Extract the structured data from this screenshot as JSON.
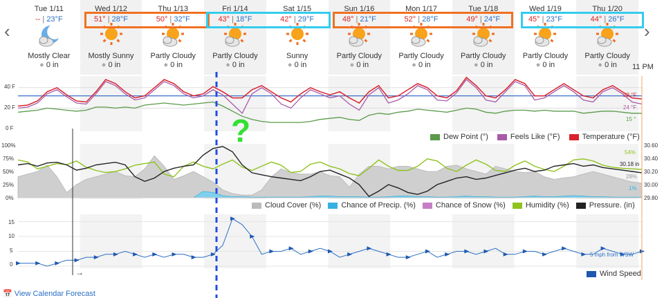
{
  "days": [
    {
      "date": "Tue 1/11",
      "hi": "--",
      "lo": "23°F",
      "condition": "Mostly Clear",
      "precip": "0 in",
      "icon": "moon-cloud"
    },
    {
      "date": "Wed 1/12",
      "hi": "51°",
      "lo": "28°F",
      "condition": "Mostly Sunny",
      "precip": "0 in",
      "icon": "sun"
    },
    {
      "date": "Thu 1/13",
      "hi": "50°",
      "lo": "32°F",
      "condition": "Partly Cloudy",
      "precip": "0 in",
      "icon": "sun-cloud"
    },
    {
      "date": "Fri 1/14",
      "hi": "43°",
      "lo": "18°F",
      "condition": "Partly Cloudy",
      "precip": "0 in",
      "icon": "sun-cloud"
    },
    {
      "date": "Sat 1/15",
      "hi": "42°",
      "lo": "29°F",
      "condition": "Sunny",
      "precip": "0 in",
      "icon": "sun"
    },
    {
      "date": "Sun 1/16",
      "hi": "48°",
      "lo": "21°F",
      "condition": "Partly Cloudy",
      "precip": "0 in",
      "icon": "sun-cloud"
    },
    {
      "date": "Mon 1/17",
      "hi": "52°",
      "lo": "28°F",
      "condition": "Partly Cloudy",
      "precip": "0 in",
      "icon": "sun-cloud"
    },
    {
      "date": "Tue 1/18",
      "hi": "49°",
      "lo": "24°F",
      "condition": "Partly Cloudy",
      "precip": "0 in",
      "icon": "sun-cloud"
    },
    {
      "date": "Wed 1/19",
      "hi": "45°",
      "lo": "23°F",
      "condition": "Partly Cloudy",
      "precip": "0 in",
      "icon": "sun-cloud"
    },
    {
      "date": "Thu 1/20",
      "hi": "44°",
      "lo": "26°F",
      "condition": "Partly Cloudy",
      "precip": "0 in",
      "icon": "sun-cloud"
    }
  ],
  "time_label": "11 PM",
  "annotation_mark": "?",
  "footer_link": "View Calendar Forecast",
  "colors": {
    "orange_box": "#f07021",
    "cyan_box": "#33ccee",
    "temp": "#d9232e",
    "feels": "#a85aa8",
    "dew": "#5a9a4a",
    "humidity": "#8fc31f",
    "pressure": "#222222",
    "cloud": "#bbbbbb",
    "precip": "#36b2e0",
    "wind": "#2a6fc4",
    "dash": "#1f4fe0"
  },
  "temp_chart": {
    "ticks": [
      "40 F",
      "20 F",
      "0 F"
    ],
    "legend": [
      {
        "label": "Dew Point (°)",
        "color": "#5a9a4a"
      },
      {
        "label": "Feels Like (°F)",
        "color": "#a85aa8"
      },
      {
        "label": "Temperature (°F)",
        "color": "#d9232e"
      }
    ],
    "end_labels": {
      "temperature": "29 °F",
      "feels_like": "24 °F",
      "dew_point": "15 °"
    },
    "reference_line": 32,
    "temperature": [
      22,
      23,
      27,
      36,
      40,
      33,
      27,
      26,
      36,
      48,
      44,
      36,
      30,
      32,
      40,
      48,
      44,
      36,
      32,
      34,
      41,
      36,
      30,
      30,
      38,
      42,
      36,
      30,
      26,
      34,
      40,
      36,
      33,
      36,
      30,
      25,
      36,
      42,
      30,
      32,
      38,
      44,
      40,
      32,
      30,
      37,
      50,
      42,
      32,
      30,
      38,
      48,
      44,
      32,
      32,
      38,
      44,
      38,
      32,
      30,
      38,
      42,
      36,
      30,
      29
    ],
    "feels": [
      20,
      21,
      25,
      34,
      38,
      31,
      25,
      24,
      34,
      46,
      42,
      34,
      28,
      30,
      38,
      46,
      42,
      34,
      30,
      32,
      38,
      33,
      24,
      15,
      34,
      40,
      34,
      24,
      20,
      30,
      38,
      34,
      30,
      32,
      24,
      18,
      33,
      40,
      25,
      28,
      34,
      42,
      38,
      28,
      27,
      35,
      48,
      40,
      28,
      26,
      36,
      46,
      42,
      28,
      30,
      36,
      42,
      36,
      28,
      26,
      36,
      40,
      34,
      26,
      24
    ],
    "dew": [
      16,
      17,
      18,
      20,
      19,
      18,
      17,
      18,
      21,
      21,
      20,
      21,
      20,
      23,
      24,
      25,
      24,
      23,
      24,
      25,
      26,
      22,
      17,
      12,
      9,
      7,
      6,
      6,
      6,
      6,
      7,
      9,
      10,
      11,
      9,
      8,
      13,
      15,
      14,
      16,
      17,
      19,
      18,
      17,
      16,
      18,
      20,
      19,
      16,
      15,
      17,
      18,
      18,
      17,
      18,
      17,
      17,
      17,
      15,
      16,
      17,
      17,
      16,
      15,
      15
    ]
  },
  "mid_chart": {
    "ticks_left": [
      "100%",
      "75%",
      "50%",
      "25%",
      "0%"
    ],
    "ticks_right": [
      "30.60",
      "30.40",
      "30.20",
      "30.00",
      "29.80"
    ],
    "legend": [
      {
        "label": "Cloud Cover (%)",
        "color": "#bbbbbb"
      },
      {
        "label": "Chance of Precip. (%)",
        "color": "#36b2e0"
      },
      {
        "label": "Chance of Snow (%)",
        "color": "#c57fc5"
      },
      {
        "label": "Humidity (%)",
        "color": "#8fc31f"
      },
      {
        "label": "Pressure. (in)",
        "color": "#222222"
      }
    ],
    "end_labels": {
      "humidity": "54%",
      "pressure": "30.18 in",
      "cloud": "28%",
      "precip": "1%"
    },
    "humidity": [
      72,
      68,
      55,
      60,
      65,
      63,
      70,
      58,
      52,
      48,
      50,
      55,
      62,
      65,
      68,
      45,
      40,
      60,
      68,
      60,
      55,
      64,
      72,
      58,
      52,
      60,
      68,
      62,
      48,
      50,
      64,
      68,
      60,
      55,
      46,
      42,
      56,
      72,
      60,
      52,
      52,
      60,
      74,
      70,
      56,
      50,
      62,
      72,
      64,
      52,
      50,
      62,
      70,
      60,
      54,
      50,
      60,
      72,
      74,
      70,
      62,
      58,
      56,
      55,
      54
    ],
    "pressure": [
      30.3,
      30.32,
      30.28,
      30.33,
      30.34,
      30.3,
      30.22,
      30.25,
      30.3,
      30.32,
      30.34,
      30.3,
      30.12,
      30.05,
      30.1,
      30.2,
      30.25,
      30.28,
      30.3,
      30.45,
      30.55,
      30.58,
      30.5,
      30.3,
      30.18,
      30.15,
      30.12,
      30.1,
      30.08,
      30.06,
      30.12,
      30.2,
      30.22,
      30.16,
      30.1,
      30.0,
      29.82,
      29.9,
      30.0,
      29.95,
      29.88,
      29.85,
      29.9,
      30.0,
      30.05,
      30.1,
      30.12,
      30.08,
      30.1,
      30.14,
      30.18,
      30.22,
      30.25,
      30.2,
      30.22,
      30.28,
      30.3,
      30.32,
      30.28,
      30.3,
      30.26,
      30.24,
      30.22,
      30.2,
      30.18
    ],
    "cloud": [
      40,
      45,
      50,
      62,
      40,
      10,
      25,
      35,
      40,
      45,
      50,
      42,
      40,
      55,
      80,
      60,
      35,
      42,
      50,
      40,
      30,
      15,
      8,
      5,
      5,
      15,
      40,
      55,
      48,
      45,
      45,
      50,
      42,
      40,
      20,
      45,
      60,
      60,
      55,
      60,
      60,
      55,
      50,
      50,
      60,
      62,
      55,
      50,
      45,
      60,
      55,
      50,
      48,
      50,
      40,
      35,
      38,
      40,
      45,
      50,
      45,
      40,
      35,
      30,
      28
    ],
    "precip": [
      0,
      0,
      0,
      0,
      0,
      0,
      0,
      0,
      0,
      0,
      0,
      0,
      0,
      0,
      0,
      0,
      0,
      0,
      0,
      12,
      10,
      4,
      2,
      2,
      1,
      1,
      1,
      1,
      1,
      1,
      2,
      3,
      3,
      2,
      2,
      2,
      1,
      1,
      2,
      3,
      3,
      2,
      2,
      1,
      1,
      2,
      3,
      2,
      2,
      1,
      1,
      1,
      2,
      3,
      2,
      2,
      3,
      4,
      3,
      2,
      2,
      1,
      1,
      1,
      1
    ]
  },
  "wind_chart": {
    "ticks": [
      "15",
      "10",
      "5",
      "0"
    ],
    "legend": [
      {
        "label": "Wind Speed",
        "color": "#1f58b0"
      }
    ],
    "end_label": "5 mph from WSW",
    "speed": [
      1,
      1,
      1,
      0,
      1,
      2,
      2,
      3,
      3,
      4,
      4,
      5,
      4,
      3,
      4,
      3,
      4,
      4,
      3,
      3,
      4,
      7,
      16,
      14,
      10,
      4,
      5,
      5,
      6,
      4,
      5,
      6,
      5,
      3,
      4,
      5,
      6,
      5,
      4,
      3,
      3,
      4,
      5,
      3,
      4,
      5,
      5,
      4,
      5,
      6,
      4,
      4,
      5,
      5,
      4,
      5,
      6,
      5,
      4,
      4,
      6,
      5,
      4,
      4,
      5
    ]
  }
}
